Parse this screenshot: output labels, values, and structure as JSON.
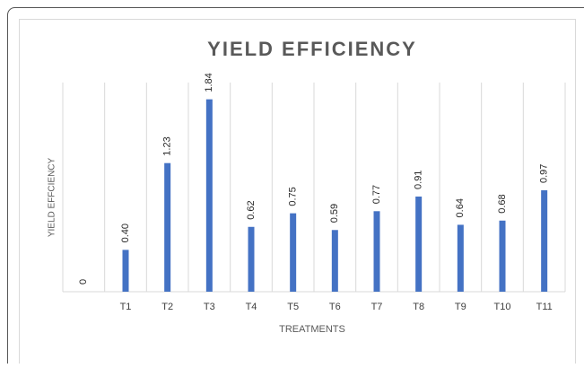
{
  "chart_data": {
    "type": "bar",
    "title": "YIELD EFFICIENCY",
    "x_label": "TREATMENTS",
    "y_label": "YIELD EFFCIENCY",
    "categories": [
      null,
      "T1",
      "T2",
      "T3",
      "T4",
      "T5",
      "T6",
      "T7",
      "T8",
      "T9",
      "T10",
      "T11"
    ],
    "values": [
      0,
      0.4,
      1.23,
      1.84,
      0.62,
      0.75,
      0.59,
      0.77,
      0.91,
      0.64,
      0.68,
      0.97
    ],
    "value_labels": [
      "0",
      "0.40",
      "1.23",
      "1.84",
      "0.62",
      "0.75",
      "0.59",
      "0.77",
      "0.91",
      "0.64",
      "0.68",
      "0.97"
    ],
    "color": "#4472c4",
    "ylim": [
      0,
      2
    ],
    "grid": true
  }
}
